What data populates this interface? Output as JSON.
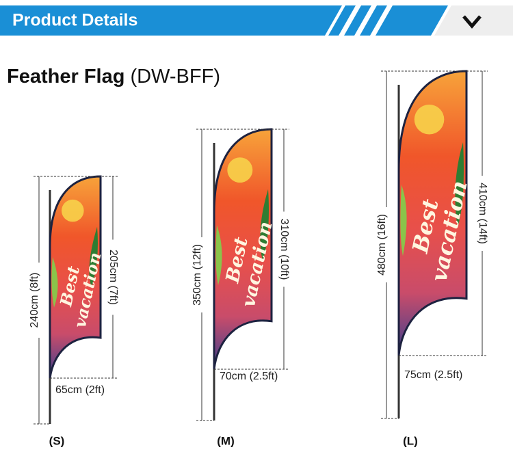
{
  "header": {
    "title": "Product Details"
  },
  "product": {
    "name": "Feather Flag",
    "code": "(DW-BFF)"
  },
  "flags": [
    {
      "size": "(S)",
      "total_height": "240cm (8ft)",
      "flag_height": "205cm (7ft)",
      "width": "65cm (2ft)",
      "artwork_text": [
        "Best",
        "vacation"
      ]
    },
    {
      "size": "(M)",
      "total_height": "350cm (12ft)",
      "flag_height": "310cm (10ft)",
      "width": "70cm (2.5ft)",
      "artwork_text": [
        "Best",
        "vacation"
      ]
    },
    {
      "size": "(L)",
      "total_height": "480cm (16ft)",
      "flag_height": "410cm (14ft)",
      "width": "75cm (2.5ft)",
      "artwork_text": [
        "Best",
        "vacation"
      ]
    }
  ]
}
